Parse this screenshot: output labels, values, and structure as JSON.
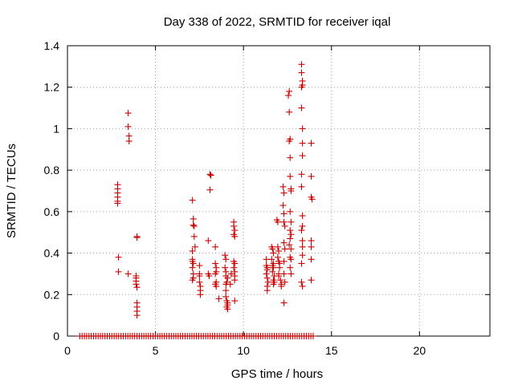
{
  "chart_data": {
    "type": "scatter",
    "title": "Day 338 of 2022, SRMTID for receiver iqal",
    "xlabel": "GPS time / hours",
    "ylabel": "SRMTID / TECUs",
    "xlim": [
      0,
      24
    ],
    "ylim": [
      0,
      1.4
    ],
    "xticks": [
      0,
      5,
      10,
      15,
      20
    ],
    "xtick_labels": [
      "0",
      "5",
      "10",
      "15",
      "20"
    ],
    "yticks": [
      0,
      0.2,
      0.4,
      0.6,
      0.8,
      1.0,
      1.2,
      1.4
    ],
    "ytick_labels": [
      "0",
      "0.2",
      "0.4",
      "0.6",
      "0.8",
      "1",
      "1.2",
      "1.4"
    ],
    "grid": true,
    "marker": "+",
    "color": "#cc0000",
    "series": [
      {
        "name": "SRMTID",
        "points": [
          [
            2.85,
            0.73
          ],
          [
            2.85,
            0.71
          ],
          [
            2.85,
            0.69
          ],
          [
            2.85,
            0.67
          ],
          [
            2.85,
            0.65
          ],
          [
            2.85,
            0.64
          ],
          [
            2.9,
            0.38
          ],
          [
            2.9,
            0.31
          ],
          [
            3.45,
            1.075
          ],
          [
            3.45,
            1.01
          ],
          [
            3.5,
            0.965
          ],
          [
            3.5,
            0.94
          ],
          [
            3.45,
            0.3
          ],
          [
            3.95,
            0.48
          ],
          [
            3.95,
            0.475
          ],
          [
            3.9,
            0.29
          ],
          [
            3.9,
            0.28
          ],
          [
            3.9,
            0.265
          ],
          [
            3.9,
            0.25
          ],
          [
            3.95,
            0.235
          ],
          [
            3.95,
            0.16
          ],
          [
            3.95,
            0.14
          ],
          [
            3.95,
            0.12
          ],
          [
            3.95,
            0.1
          ],
          [
            7.1,
            0.655
          ],
          [
            7.15,
            0.565
          ],
          [
            7.15,
            0.535
          ],
          [
            7.2,
            0.53
          ],
          [
            7.2,
            0.48
          ],
          [
            7.25,
            0.43
          ],
          [
            7.1,
            0.41
          ],
          [
            7.1,
            0.37
          ],
          [
            7.1,
            0.36
          ],
          [
            7.15,
            0.35
          ],
          [
            7.1,
            0.33
          ],
          [
            7.15,
            0.3
          ],
          [
            7.15,
            0.28
          ],
          [
            7.1,
            0.27
          ],
          [
            7.5,
            0.34
          ],
          [
            7.5,
            0.3
          ],
          [
            7.5,
            0.29
          ],
          [
            7.5,
            0.26
          ],
          [
            7.55,
            0.24
          ],
          [
            7.55,
            0.22
          ],
          [
            7.55,
            0.2
          ],
          [
            8.1,
            0.78
          ],
          [
            8.15,
            0.775
          ],
          [
            8.1,
            0.705
          ],
          [
            8.0,
            0.46
          ],
          [
            8.0,
            0.3
          ],
          [
            8.05,
            0.29
          ],
          [
            8.4,
            0.43
          ],
          [
            8.4,
            0.35
          ],
          [
            8.45,
            0.33
          ],
          [
            8.45,
            0.31
          ],
          [
            8.4,
            0.3
          ],
          [
            8.45,
            0.26
          ],
          [
            8.4,
            0.25
          ],
          [
            8.45,
            0.24
          ],
          [
            8.6,
            0.18
          ],
          [
            8.95,
            0.39
          ],
          [
            9.0,
            0.37
          ],
          [
            8.95,
            0.33
          ],
          [
            9.0,
            0.31
          ],
          [
            9.0,
            0.29
          ],
          [
            9.1,
            0.28
          ],
          [
            9.05,
            0.26
          ],
          [
            9.0,
            0.25
          ],
          [
            9.0,
            0.22
          ],
          [
            9.0,
            0.19
          ],
          [
            9.05,
            0.17
          ],
          [
            9.1,
            0.16
          ],
          [
            9.1,
            0.15
          ],
          [
            9.05,
            0.14
          ],
          [
            9.1,
            0.13
          ],
          [
            9.25,
            0.25
          ],
          [
            9.3,
            0.3
          ],
          [
            9.45,
            0.55
          ],
          [
            9.45,
            0.53
          ],
          [
            9.5,
            0.51
          ],
          [
            9.45,
            0.49
          ],
          [
            9.5,
            0.48
          ],
          [
            9.45,
            0.36
          ],
          [
            9.5,
            0.35
          ],
          [
            9.45,
            0.33
          ],
          [
            9.5,
            0.31
          ],
          [
            9.5,
            0.29
          ],
          [
            9.5,
            0.27
          ],
          [
            9.5,
            0.17
          ],
          [
            11.3,
            0.37
          ],
          [
            11.3,
            0.34
          ],
          [
            11.35,
            0.33
          ],
          [
            11.35,
            0.32
          ],
          [
            11.3,
            0.3
          ],
          [
            11.35,
            0.28
          ],
          [
            11.4,
            0.26
          ],
          [
            11.35,
            0.24
          ],
          [
            11.35,
            0.22
          ],
          [
            11.6,
            0.43
          ],
          [
            11.65,
            0.42
          ],
          [
            11.7,
            0.4
          ],
          [
            11.6,
            0.37
          ],
          [
            11.7,
            0.35
          ],
          [
            11.65,
            0.34
          ],
          [
            11.7,
            0.33
          ],
          [
            11.65,
            0.31
          ],
          [
            11.75,
            0.29
          ],
          [
            11.7,
            0.27
          ],
          [
            11.75,
            0.26
          ],
          [
            11.7,
            0.25
          ],
          [
            11.9,
            0.56
          ],
          [
            11.95,
            0.55
          ],
          [
            11.95,
            0.43
          ],
          [
            12.0,
            0.41
          ],
          [
            11.95,
            0.38
          ],
          [
            12.0,
            0.36
          ],
          [
            12.05,
            0.35
          ],
          [
            12.05,
            0.33
          ],
          [
            12.0,
            0.3
          ],
          [
            12.0,
            0.29
          ],
          [
            12.1,
            0.27
          ],
          [
            12.15,
            0.25
          ],
          [
            12.15,
            0.24
          ],
          [
            12.25,
            0.72
          ],
          [
            12.3,
            0.69
          ],
          [
            12.25,
            0.63
          ],
          [
            12.3,
            0.59
          ],
          [
            12.3,
            0.55
          ],
          [
            12.35,
            0.53
          ],
          [
            12.3,
            0.45
          ],
          [
            12.35,
            0.42
          ],
          [
            12.3,
            0.36
          ],
          [
            12.3,
            0.3
          ],
          [
            12.35,
            0.26
          ],
          [
            12.3,
            0.16
          ],
          [
            12.6,
            1.18
          ],
          [
            12.55,
            1.16
          ],
          [
            12.6,
            1.08
          ],
          [
            12.65,
            0.95
          ],
          [
            12.6,
            0.94
          ],
          [
            12.65,
            0.86
          ],
          [
            12.65,
            0.77
          ],
          [
            12.7,
            0.71
          ],
          [
            12.7,
            0.7
          ],
          [
            12.65,
            0.6
          ],
          [
            12.7,
            0.55
          ],
          [
            12.65,
            0.51
          ],
          [
            12.7,
            0.49
          ],
          [
            12.65,
            0.47
          ],
          [
            12.6,
            0.44
          ],
          [
            12.7,
            0.42
          ],
          [
            12.65,
            0.38
          ],
          [
            12.7,
            0.37
          ],
          [
            12.65,
            0.33
          ],
          [
            12.7,
            0.3
          ],
          [
            13.3,
            1.31
          ],
          [
            13.3,
            1.27
          ],
          [
            13.35,
            1.23
          ],
          [
            13.35,
            1.21
          ],
          [
            13.3,
            1.2
          ],
          [
            13.3,
            1.1
          ],
          [
            13.35,
            1.0
          ],
          [
            13.35,
            0.93
          ],
          [
            13.35,
            0.87
          ],
          [
            13.3,
            0.78
          ],
          [
            13.3,
            0.72
          ],
          [
            13.35,
            0.58
          ],
          [
            13.35,
            0.53
          ],
          [
            13.3,
            0.51
          ],
          [
            13.35,
            0.46
          ],
          [
            13.35,
            0.43
          ],
          [
            13.35,
            0.39
          ],
          [
            13.3,
            0.35
          ],
          [
            13.3,
            0.26
          ],
          [
            13.35,
            0.24
          ],
          [
            13.85,
            0.93
          ],
          [
            13.85,
            0.77
          ],
          [
            13.85,
            0.67
          ],
          [
            13.9,
            0.66
          ],
          [
            13.85,
            0.46
          ],
          [
            13.85,
            0.43
          ],
          [
            13.85,
            0.37
          ],
          [
            13.85,
            0.27
          ]
        ]
      }
    ]
  }
}
